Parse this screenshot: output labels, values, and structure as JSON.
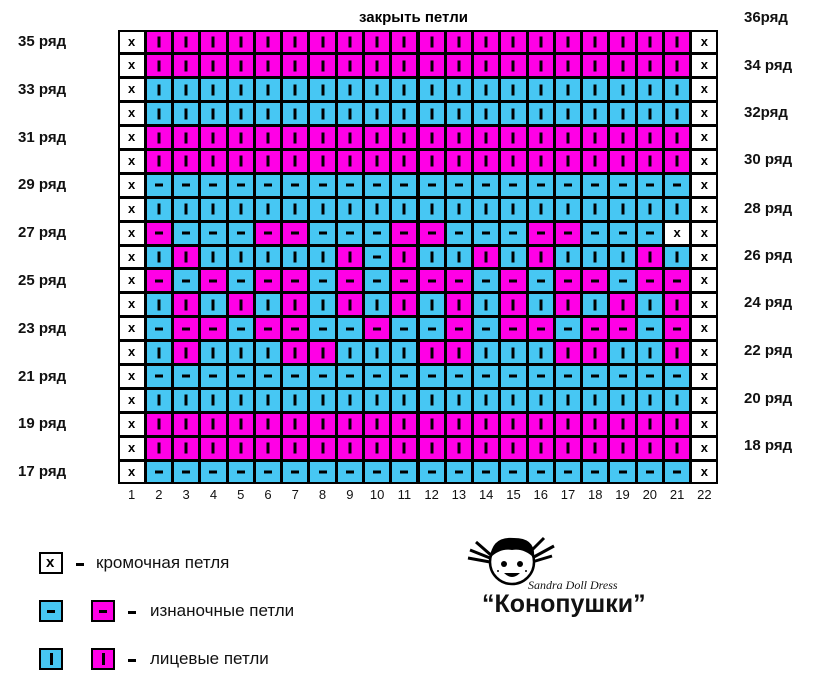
{
  "title": "закрыть петли",
  "left_row_labels": [
    "35 ряд",
    "33 ряд",
    "31 ряд",
    "29 ряд",
    "27 ряд",
    "25 ряд",
    "23 ряд",
    "21 ряд",
    "19 ряд",
    "17 ряд"
  ],
  "right_row_labels": [
    "36ряд",
    "34 ряд",
    "32ряд",
    "30 ряд",
    "28 ряд",
    "26 ряд",
    "24 ряд",
    "22 ряд",
    "20 ряд",
    "18 ряд"
  ],
  "columns": [
    "1",
    "2",
    "3",
    "4",
    "5",
    "6",
    "7",
    "8",
    "9",
    "10",
    "11",
    "12",
    "13",
    "14",
    "15",
    "16",
    "17",
    "18",
    "19",
    "20",
    "21",
    "22"
  ],
  "colors": {
    "blue": "#47c7f3",
    "pink": "#ff00e6",
    "edge": "#ffffff",
    "border": "#000000"
  },
  "grid_rows": [
    "XPPPPPPPPPPPPPPPPPPPPX",
    "XPPPPPPPPPPPPPPPPPPPPX",
    "XBBBBBBBBBBBBBBBBBBBBX",
    "XBBBBBBBBBBBBBBBBBBBBX",
    "XPPPPPPPPPPPPPPPPPPPPX",
    "XPPPPPPPPPPPPPPPPPPPPX",
    "XbbbbbbbbbbbbbbbbbbbbX",
    "XBBBBBBBBBBBBBBBBBBBBX",
    "XpbbbppbbbppbbbppbbbX ",
    "XBPBBBBBPbPBBPBPBBBPBX",
    "XpbpbppbpbpppbpbppbppX",
    "XBPBPBPBPBPBPBPBPBPBPX",
    "XbppbppbbpbbpbppbppbpX",
    "XBPBBBPPBBBPPBBBPPBBPX",
    "XbbbbbbbbbbbbbbbbbbbbX",
    "XBBBBBBBBBBBBBBBBBBBBX",
    "XPPPPPPPPPPPPPPPPPPPPX",
    "XPPPPPPPPPPPPPPPPPPPPX",
    "XbbbbbbbbbbbbbbbbbbbbX"
  ],
  "legend": {
    "edge_text": "кромочная петля",
    "purl_text": "изнаночные петли",
    "knit_text": "лицевые петли",
    "edge_symbol": "x"
  },
  "logo": {
    "brand_line": "Sandra Doll Dress",
    "brand_name": "“Конопушки”"
  }
}
